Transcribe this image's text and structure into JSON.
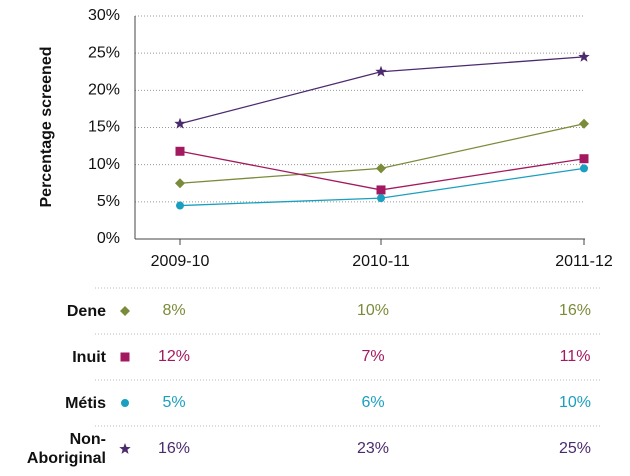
{
  "chart_data": {
    "type": "line",
    "y_label": "Percentage screened",
    "categories": [
      "2009-10",
      "2010-11",
      "2011-12"
    ],
    "ylim": [
      0,
      30
    ],
    "yticks": [
      {
        "value": 0,
        "label": "0%"
      },
      {
        "value": 5,
        "label": "5%"
      },
      {
        "value": 10,
        "label": "10%"
      },
      {
        "value": 15,
        "label": "15%"
      },
      {
        "value": 20,
        "label": "20%"
      },
      {
        "value": 25,
        "label": "25%"
      },
      {
        "value": 30,
        "label": "30%"
      }
    ],
    "grid": true,
    "series": [
      {
        "name": "Dene",
        "color": "#7a8b3a",
        "marker": "diamond",
        "values": [
          7.5,
          9.5,
          15.5
        ],
        "value_labels": [
          "8%",
          "10%",
          "16%"
        ]
      },
      {
        "name": "Inuit",
        "color": "#a3195f",
        "marker": "square",
        "values": [
          11.8,
          6.6,
          10.8
        ],
        "value_labels": [
          "12%",
          "7%",
          "11%"
        ]
      },
      {
        "name": "Métis",
        "color": "#1a9fc0",
        "marker": "circle",
        "values": [
          4.5,
          5.5,
          9.5
        ],
        "value_labels": [
          "5%",
          "6%",
          "10%"
        ]
      },
      {
        "name": "Non-Aboriginal",
        "color": "#4b2a6e",
        "marker": "star",
        "values": [
          15.5,
          22.5,
          24.5
        ],
        "value_labels": [
          "16%",
          "23%",
          "25%"
        ]
      }
    ]
  }
}
